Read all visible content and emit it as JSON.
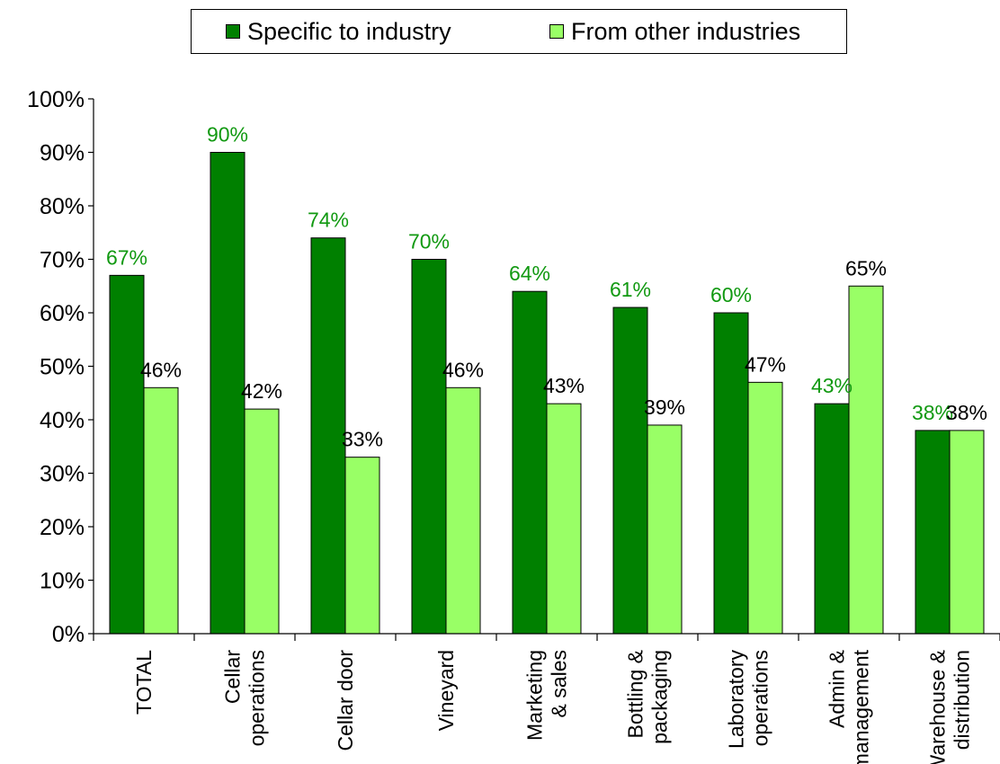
{
  "colors": {
    "series1": "#008000",
    "series2": "#99ff66",
    "series1_label": "#119911",
    "series2_label": "#000000"
  },
  "chart_data": {
    "type": "bar",
    "title": "",
    "xlabel": "",
    "ylabel": "",
    "ylim": [
      0,
      100
    ],
    "y_ticks": [
      "0%",
      "10%",
      "20%",
      "30%",
      "40%",
      "50%",
      "60%",
      "70%",
      "80%",
      "90%",
      "100%"
    ],
    "categories": [
      [
        "TOTAL"
      ],
      [
        "Cellar",
        "operations"
      ],
      [
        "Cellar door"
      ],
      [
        "Vineyard"
      ],
      [
        "Marketing",
        "& sales"
      ],
      [
        "Bottling &",
        "packaging"
      ],
      [
        "Laboratory",
        "operations"
      ],
      [
        "Admin &",
        "management"
      ],
      [
        "Warehouse &",
        "distribution"
      ]
    ],
    "series": [
      {
        "name": "Specific to industry",
        "values": [
          67,
          90,
          74,
          70,
          64,
          61,
          60,
          43,
          38
        ],
        "labels": [
          "67%",
          "90%",
          "74%",
          "70%",
          "64%",
          "61%",
          "60%",
          "43%",
          "38%"
        ]
      },
      {
        "name": "From other industries",
        "values": [
          46,
          42,
          33,
          46,
          43,
          39,
          47,
          65,
          38
        ],
        "labels": [
          "46%",
          "42%",
          "33%",
          "46%",
          "43%",
          "39%",
          "47%",
          "65%",
          "38%"
        ]
      }
    ],
    "legend_position": "top",
    "grid": false
  }
}
